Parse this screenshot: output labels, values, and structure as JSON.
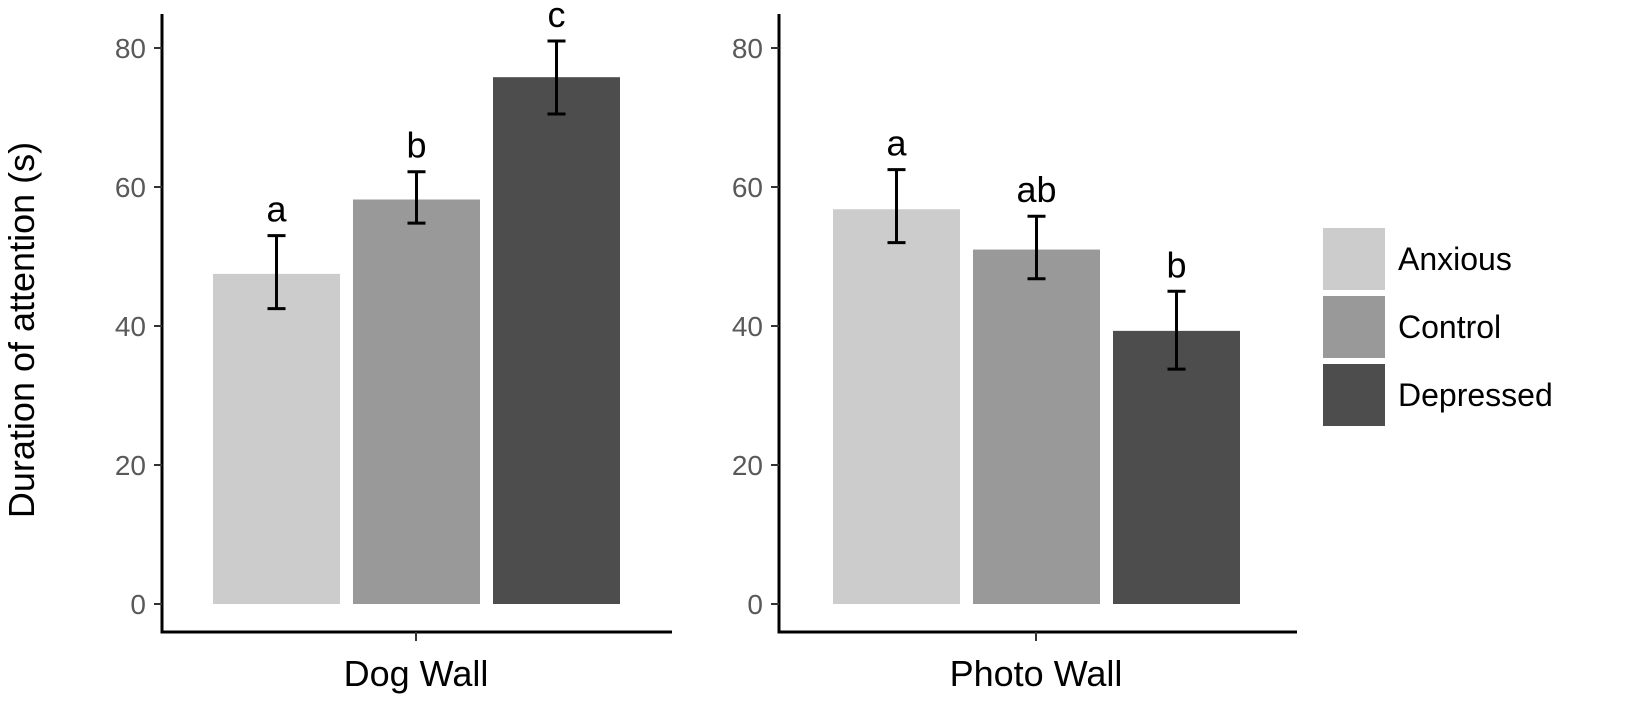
{
  "chart_data": {
    "type": "bar",
    "ylabel": "Duration of attention (s)",
    "ylim": [
      0,
      84
    ],
    "yticks": [
      0,
      20,
      40,
      60,
      80
    ],
    "grid": false,
    "legend_position": "right",
    "series_colors": {
      "Anxious": "#cccccc",
      "Control": "#999999",
      "Depressed": "#4d4d4d"
    },
    "legend": [
      "Anxious",
      "Control",
      "Depressed"
    ],
    "panels": [
      {
        "xlabel": "Dog Wall",
        "bars": [
          {
            "group": "Anxious",
            "value": 47.5,
            "err_low": 42.5,
            "err_high": 53.0,
            "sig": "a"
          },
          {
            "group": "Control",
            "value": 58.2,
            "err_low": 54.8,
            "err_high": 62.2,
            "sig": "b"
          },
          {
            "group": "Depressed",
            "value": 75.8,
            "err_low": 70.5,
            "err_high": 81.0,
            "sig": "c"
          }
        ]
      },
      {
        "xlabel": "Photo Wall",
        "bars": [
          {
            "group": "Anxious",
            "value": 56.8,
            "err_low": 52.0,
            "err_high": 62.5,
            "sig": "a"
          },
          {
            "group": "Control",
            "value": 51.0,
            "err_low": 46.8,
            "err_high": 55.8,
            "sig": "ab"
          },
          {
            "group": "Depressed",
            "value": 39.3,
            "err_low": 33.8,
            "err_high": 45.0,
            "sig": "b"
          }
        ]
      }
    ]
  }
}
